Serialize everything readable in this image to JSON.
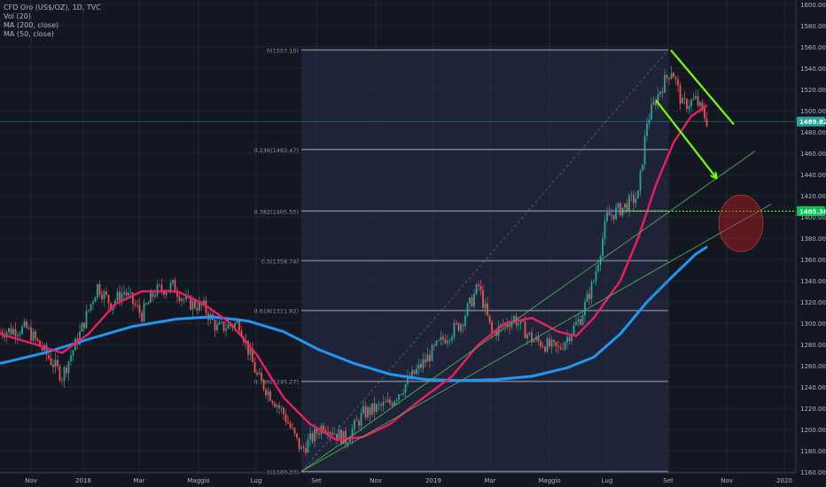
{
  "header": {
    "symbol_line": "CFD Oro (US$/OZ), 1D, TVC",
    "indicators": [
      "Vol (20)",
      "MA (200, close)",
      "MA (50, close)"
    ]
  },
  "colors": {
    "background": "#131722",
    "grid": "#232734",
    "up": "#26a69a",
    "down": "#ef5350",
    "ma50": "#e91e63",
    "ma200": "#2196f3",
    "fib": "#8a8fa8",
    "green": "#4caf50",
    "bright_green": "#76ff03",
    "price_badge": "#26a69a",
    "level_badge": "#00c853"
  },
  "chart_data": {
    "type": "line",
    "title": "CFD Oro (US$/OZ), 1D, TVC",
    "xlabel": "",
    "ylabel": "",
    "ylim": [
      1127,
      1605
    ],
    "x_ticks": [
      "Nov",
      "2018",
      "Mar",
      "Maggio",
      "Lug",
      "Set",
      "Nov",
      "2019",
      "Mar",
      "Maggio",
      "Lug",
      "Set",
      "Nov",
      "2020"
    ],
    "y_ticks": [
      1140,
      1160,
      1180,
      1200,
      1220,
      1240,
      1260,
      1280,
      1300,
      1320,
      1340,
      1360,
      1380,
      1400,
      1420,
      1440,
      1460,
      1480,
      1500,
      1520,
      1540,
      1560,
      1580,
      1600
    ],
    "last_price": {
      "label": "1489.82",
      "value": 1489.82
    },
    "marked_level": {
      "label": "1405.38",
      "value": 1405.38
    },
    "fibonacci": {
      "range": [
        "Set",
        "Set"
      ],
      "levels": [
        {
          "label": "0(1557.10)",
          "value": 1557.1
        },
        {
          "label": "0.236(1463.47)",
          "value": 1463.47
        },
        {
          "label": "0.382(1405.55)",
          "value": 1405.55
        },
        {
          "label": "0.5(1358.74)",
          "value": 1358.74
        },
        {
          "label": "0.618(1311.92)",
          "value": 1311.92
        },
        {
          "label": "0.786(1245.27)",
          "value": 1245.27
        },
        {
          "label": "1(1160.37)",
          "value": 1160.37
        }
      ]
    },
    "series": [
      {
        "name": "Price",
        "x": [
          "Nov",
          "2018",
          "Mar",
          "Maggio",
          "Lug",
          "Set",
          "Nov",
          "2019",
          "Mar",
          "Maggio",
          "Lug",
          "Set"
        ],
        "values": [
          1292,
          1330,
          1325,
          1315,
          1240,
          1198,
          1225,
          1290,
          1305,
          1295,
          1420,
          1510
        ]
      },
      {
        "name": "MA (50, close)",
        "x": [
          "Nov",
          "2018",
          "Mar",
          "Maggio",
          "Lug",
          "Set",
          "Nov",
          "2019",
          "Mar",
          "Maggio",
          "Lug",
          "Set"
        ],
        "values": [
          1290,
          1315,
          1328,
          1325,
          1280,
          1205,
          1215,
          1270,
          1305,
          1300,
          1370,
          1505
        ]
      },
      {
        "name": "MA (200, close)",
        "x": [
          "Nov",
          "2018",
          "Mar",
          "Maggio",
          "Lug",
          "Set",
          "Nov",
          "2019",
          "Mar",
          "Maggio",
          "Lug",
          "Set"
        ],
        "values": [
          1268,
          1285,
          1300,
          1306,
          1290,
          1262,
          1247,
          1248,
          1252,
          1265,
          1310,
          1372
        ]
      }
    ]
  }
}
